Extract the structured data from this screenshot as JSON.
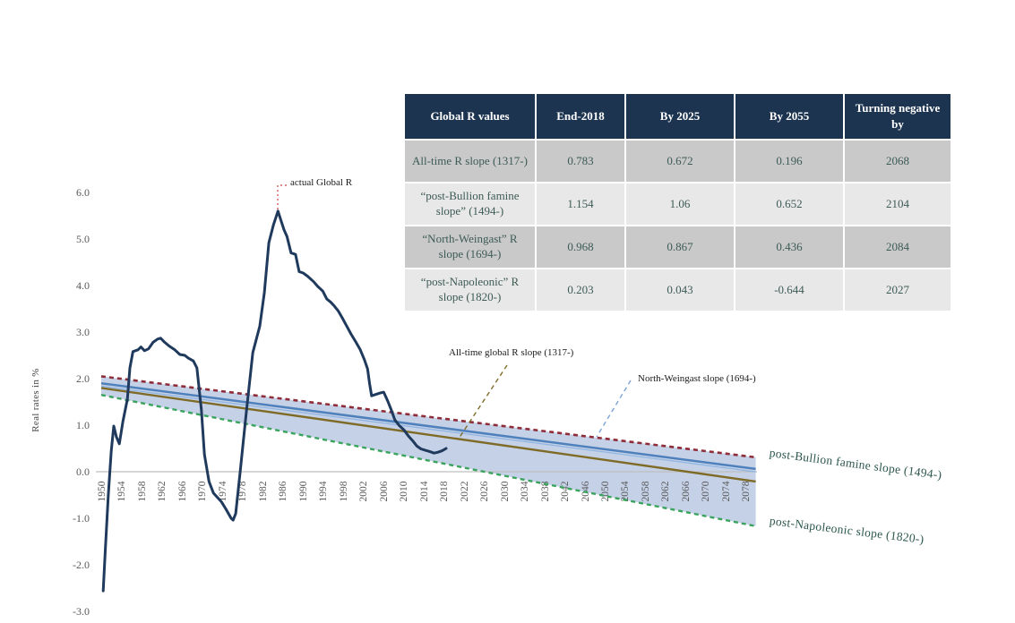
{
  "chart_data": {
    "type": "line",
    "title": "",
    "xlabel": "",
    "ylabel": "Real rates in %",
    "xlim": [
      1950,
      2080
    ],
    "ylim": [
      -3.0,
      6.0
    ],
    "grid": "zero-line-only",
    "legend_position": "none",
    "y_ticks": [
      "6.0",
      "5.0",
      "4.0",
      "3.0",
      "2.0",
      "1.0",
      "0.0",
      "-1.0",
      "-2.0",
      "-3.0"
    ],
    "x_ticks": [
      1950,
      1954,
      1958,
      1962,
      1966,
      1970,
      1974,
      1978,
      1982,
      1986,
      1990,
      1994,
      1998,
      2002,
      2006,
      2010,
      2014,
      2018,
      2022,
      2026,
      2030,
      2034,
      2038,
      2042,
      2046,
      2050,
      2054,
      2058,
      2062,
      2066,
      2070,
      2074,
      2078
    ],
    "band": {
      "top_series": "bullion",
      "bottom_series": "napoleonic",
      "fill": "#b7c6e0",
      "opacity": 0.8
    },
    "colors": {
      "actual": "#1f3a5c",
      "bullion": "#8e2d39",
      "weingast": "#4f81bd",
      "weingast_halo": "#8eb4e3",
      "alltime": "#7f6b28",
      "napoleonic": "#3aa45f",
      "zero_line": "#bfbfbf",
      "leader_actual": "#cc4444",
      "leader_alltime": "#7f6b28",
      "leader_weingast": "#7aa3d8"
    },
    "series": [
      {
        "id": "actual",
        "name": "actual Global R",
        "style": "solid",
        "width": 3,
        "points": [
          [
            1950.4,
            -2.56
          ],
          [
            1950.8,
            -1.7
          ],
          [
            1951.4,
            -0.5
          ],
          [
            1952.0,
            0.45
          ],
          [
            1952.5,
            0.98
          ],
          [
            1953.0,
            0.75
          ],
          [
            1953.6,
            0.6
          ],
          [
            1954.3,
            1.08
          ],
          [
            1955.2,
            1.56
          ],
          [
            1955.7,
            2.23
          ],
          [
            1956.3,
            2.58
          ],
          [
            1957.3,
            2.62
          ],
          [
            1957.9,
            2.68
          ],
          [
            1958.6,
            2.6
          ],
          [
            1959.4,
            2.64
          ],
          [
            1960.3,
            2.78
          ],
          [
            1961.2,
            2.85
          ],
          [
            1961.8,
            2.87
          ],
          [
            1962.6,
            2.78
          ],
          [
            1963.5,
            2.7
          ],
          [
            1964.6,
            2.62
          ],
          [
            1965.6,
            2.52
          ],
          [
            1966.6,
            2.5
          ],
          [
            1967.3,
            2.44
          ],
          [
            1968.3,
            2.38
          ],
          [
            1969.0,
            2.23
          ],
          [
            1969.9,
            1.33
          ],
          [
            1970.5,
            0.37
          ],
          [
            1971.4,
            -0.21
          ],
          [
            1972.3,
            -0.46
          ],
          [
            1973.9,
            -0.65
          ],
          [
            1974.7,
            -0.79
          ],
          [
            1975.8,
            -1.0
          ],
          [
            1976.2,
            -1.04
          ],
          [
            1976.7,
            -0.9
          ],
          [
            1977.6,
            0.0
          ],
          [
            1978.8,
            1.27
          ],
          [
            1980.1,
            2.56
          ],
          [
            1981.5,
            3.13
          ],
          [
            1982.4,
            3.85
          ],
          [
            1983.3,
            4.92
          ],
          [
            1984.2,
            5.3
          ],
          [
            1985.1,
            5.6
          ],
          [
            1985.7,
            5.4
          ],
          [
            1986.3,
            5.2
          ],
          [
            1986.9,
            5.05
          ],
          [
            1987.7,
            4.7
          ],
          [
            1988.6,
            4.67
          ],
          [
            1989.3,
            4.3
          ],
          [
            1990.1,
            4.27
          ],
          [
            1991.0,
            4.2
          ],
          [
            1992.2,
            4.08
          ],
          [
            1993.0,
            3.98
          ],
          [
            1994.0,
            3.88
          ],
          [
            1994.8,
            3.71
          ],
          [
            1995.6,
            3.64
          ],
          [
            1996.3,
            3.56
          ],
          [
            1997.1,
            3.45
          ],
          [
            1997.9,
            3.3
          ],
          [
            1998.8,
            3.12
          ],
          [
            1999.6,
            2.96
          ],
          [
            2000.5,
            2.8
          ],
          [
            2001.4,
            2.63
          ],
          [
            2002.3,
            2.4
          ],
          [
            2002.9,
            2.21
          ],
          [
            2003.3,
            1.9
          ],
          [
            2003.7,
            1.63
          ],
          [
            2004.5,
            1.66
          ],
          [
            2005.4,
            1.69
          ],
          [
            2006.1,
            1.71
          ],
          [
            2006.9,
            1.52
          ],
          [
            2007.6,
            1.33
          ],
          [
            2008.3,
            1.12
          ],
          [
            2009.2,
            0.99
          ],
          [
            2010.1,
            0.9
          ],
          [
            2011.0,
            0.77
          ],
          [
            2011.9,
            0.66
          ],
          [
            2012.7,
            0.55
          ],
          [
            2013.5,
            0.49
          ],
          [
            2014.4,
            0.46
          ],
          [
            2015.3,
            0.43
          ],
          [
            2016.1,
            0.4
          ],
          [
            2016.9,
            0.42
          ],
          [
            2017.7,
            0.45
          ],
          [
            2018.5,
            0.5
          ]
        ]
      },
      {
        "id": "bullion",
        "name": "post-Bullion famine slope (1494-)",
        "style": "dashed",
        "width": 2.6,
        "points": [
          [
            1950,
            2.05
          ],
          [
            2080,
            0.31
          ]
        ]
      },
      {
        "id": "weingast",
        "name": "North-Weingast slope (1694-)",
        "style": "solid",
        "width": 2.5,
        "points": [
          [
            1950,
            1.9
          ],
          [
            2080,
            0.06
          ]
        ]
      },
      {
        "id": "alltime",
        "name": "All-time global R slope (1317-)",
        "style": "solid",
        "width": 2.4,
        "points": [
          [
            1950,
            1.8
          ],
          [
            2080,
            -0.21
          ]
        ]
      },
      {
        "id": "napoleonic",
        "name": "post-Napoleonic slope (1820-)",
        "style": "dashed",
        "width": 2.4,
        "points": [
          [
            1950,
            1.65
          ],
          [
            2080,
            -1.17
          ]
        ]
      }
    ],
    "annotations": {
      "actual": "actual Global R",
      "alltime": "All-time global R slope (1317-)",
      "weingast": "North-Weingast slope (1694-)",
      "bullion": "post-Bullion famine slope (1494-)",
      "napoleonic": "post-Napoleonic slope (1820-)"
    }
  },
  "table": {
    "columns": [
      "Global R values",
      "End-2018",
      "By 2025",
      "By 2055",
      "Turning negative by"
    ],
    "rows": [
      [
        "All-time R slope (1317-)",
        "0.783",
        "0.672",
        "0.196",
        "2068"
      ],
      [
        "“post-Bullion famine slope” (1494-)",
        "1.154",
        "1.06",
        "0.652",
        "2104"
      ],
      [
        "“North-Weingast” R slope (1694-)",
        "0.968",
        "0.867",
        "0.436",
        "2084"
      ],
      [
        "“post-Napoleonic” R slope (1820-)",
        "0.203",
        "0.043",
        "-0.644",
        "2027"
      ]
    ]
  }
}
